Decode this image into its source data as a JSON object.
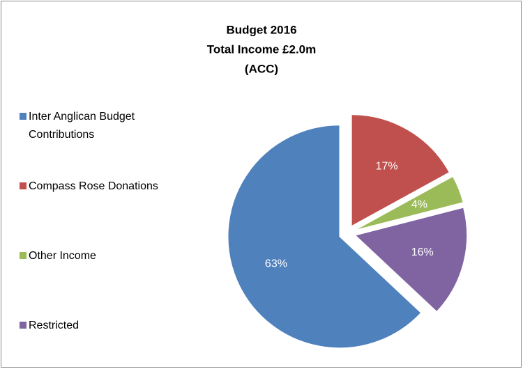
{
  "chart_data": {
    "type": "pie",
    "title": [
      "Budget 2016",
      "Total Income £2.0m",
      "(ACC)"
    ],
    "categories": [
      "Inter Anglican Budget Contributions",
      "Compass Rose Donations",
      "Other Income",
      "Restricted"
    ],
    "values": [
      63,
      17,
      4,
      16
    ],
    "value_labels": [
      "63%",
      "17%",
      "4%",
      "16%"
    ],
    "colors": [
      "#4f81bd",
      "#c0504d",
      "#9bbb59",
      "#8064a2"
    ],
    "legend": "left"
  }
}
